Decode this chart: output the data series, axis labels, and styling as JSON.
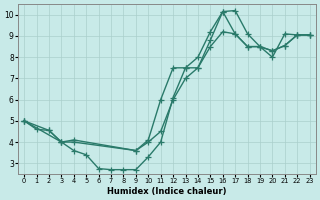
{
  "line1_x": [
    0,
    1,
    2,
    3,
    4,
    5,
    6,
    7,
    8,
    9,
    10,
    11,
    12,
    13,
    14,
    15,
    16,
    17,
    18,
    19,
    20,
    21,
    22,
    23
  ],
  "line1_y": [
    5.0,
    4.6,
    4.55,
    4.0,
    3.6,
    3.4,
    2.75,
    2.7,
    2.7,
    2.7,
    3.3,
    4.0,
    6.1,
    7.5,
    7.5,
    8.8,
    10.15,
    10.2,
    9.1,
    8.5,
    8.0,
    9.1,
    9.05,
    9.05
  ],
  "line2_x": [
    0,
    2,
    3,
    4,
    9,
    10,
    11,
    12,
    13,
    14,
    15,
    16,
    17,
    18,
    19,
    20,
    21,
    22,
    23
  ],
  "line2_y": [
    5.0,
    4.55,
    4.0,
    4.0,
    3.6,
    4.0,
    4.5,
    6.0,
    7.0,
    7.5,
    8.5,
    9.2,
    9.1,
    8.5,
    8.5,
    8.3,
    8.55,
    9.05,
    9.05
  ],
  "line3_x": [
    0,
    3,
    4,
    9,
    10,
    11,
    12,
    13,
    14,
    15,
    16,
    17,
    18,
    19,
    20,
    21,
    22,
    23
  ],
  "line3_y": [
    5.0,
    4.0,
    4.1,
    3.6,
    4.1,
    6.0,
    7.5,
    7.5,
    8.0,
    9.2,
    10.15,
    9.1,
    8.5,
    8.5,
    8.3,
    8.55,
    9.05,
    9.05
  ],
  "color": "#2A7A6A",
  "bg_color": "#C8EAE8",
  "grid_color": "#AACFCC",
  "xlabel": "Humidex (Indice chaleur)",
  "xlim": [
    -0.5,
    23.5
  ],
  "ylim": [
    2.5,
    10.5
  ],
  "xticks": [
    0,
    1,
    2,
    3,
    4,
    5,
    6,
    7,
    8,
    9,
    10,
    11,
    12,
    13,
    14,
    15,
    16,
    17,
    18,
    19,
    20,
    21,
    22,
    23
  ],
  "yticks": [
    3,
    4,
    5,
    6,
    7,
    8,
    9,
    10
  ],
  "markersize": 4,
  "linewidth": 1.0
}
